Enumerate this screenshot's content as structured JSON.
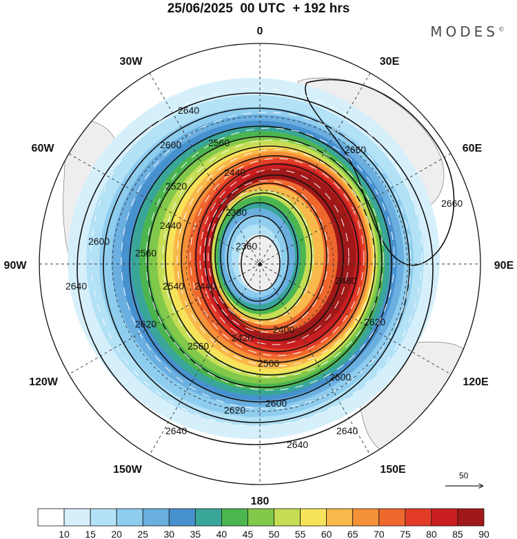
{
  "title": "25/06/2025  00 UTC  + 192 hrs",
  "brand": "MODES",
  "brand_mark": "©",
  "map": {
    "projection": "south-polar-stereographic",
    "longitude_labels": [
      {
        "text": "0",
        "lon_deg": 0
      },
      {
        "text": "30E",
        "lon_deg": 30
      },
      {
        "text": "60E",
        "lon_deg": 60
      },
      {
        "text": "90E",
        "lon_deg": 90
      },
      {
        "text": "120E",
        "lon_deg": 120
      },
      {
        "text": "150E",
        "lon_deg": 150
      },
      {
        "text": "180",
        "lon_deg": 180
      },
      {
        "text": "150W",
        "lon_deg": -150
      },
      {
        "text": "120W",
        "lon_deg": -120
      },
      {
        "text": "90W",
        "lon_deg": -90
      },
      {
        "text": "60W",
        "lon_deg": -60
      },
      {
        "text": "30W",
        "lon_deg": -30
      }
    ],
    "contour_labels": [
      "2640",
      "2600",
      "2560",
      "2520",
      "2480",
      "2440",
      "2400",
      "2380",
      "2360",
      "2420",
      "2500",
      "2620",
      "2660",
      "2540"
    ],
    "vector_reference": {
      "label": "50"
    }
  },
  "colorbar": {
    "levels": [
      "10",
      "15",
      "20",
      "25",
      "30",
      "35",
      "40",
      "45",
      "50",
      "55",
      "60",
      "65",
      "70",
      "75",
      "80",
      "85",
      "90"
    ],
    "colors": [
      "#ffffff",
      "#d6f0fb",
      "#b3e1f6",
      "#8fcdef",
      "#6aafe0",
      "#4891cf",
      "#3aa69a",
      "#4cb54f",
      "#82c84a",
      "#c5de55",
      "#f7e35a",
      "#f8b84a",
      "#f59138",
      "#ee672d",
      "#e23c28",
      "#c91f21",
      "#a01818"
    ]
  }
}
